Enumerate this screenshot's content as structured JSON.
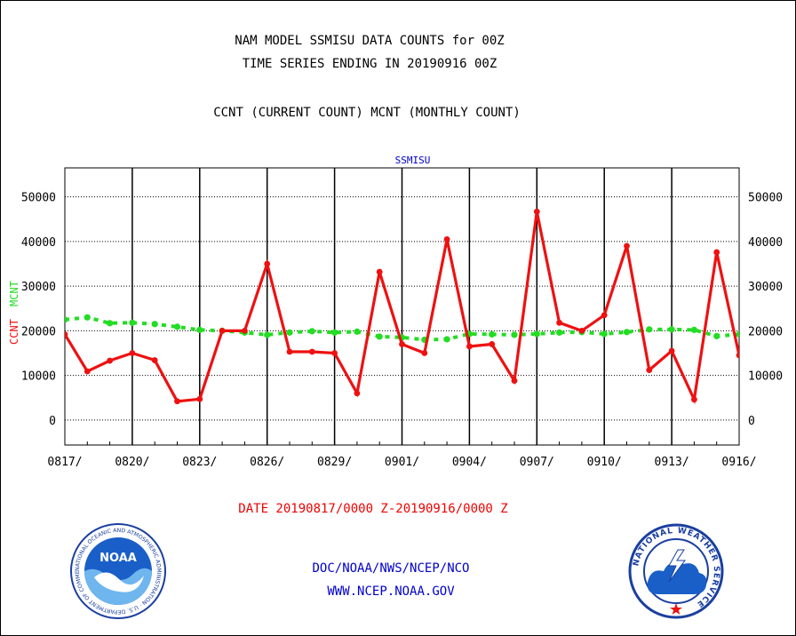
{
  "header": {
    "line1": "NAM MODEL SSMISU DATA COUNTS for 00Z",
    "line2": "TIME SERIES ENDING IN 20190916 00Z",
    "line3": "CCNT (CURRENT COUNT) MCNT (MONTHLY COUNT)"
  },
  "colors": {
    "ccnt": "#ee1111",
    "mcnt": "#22dd22",
    "series_label": "#0000cc",
    "axis": "#000000"
  },
  "chart_data": {
    "type": "line",
    "title": "SSMISU",
    "ylabel_ccnt": "CCNT",
    "ylabel_mcnt": "MCNT",
    "xtick_labels": [
      "0817/",
      "0820/",
      "0823/",
      "0826/",
      "0829/",
      "0901/",
      "0904/",
      "0907/",
      "0910/",
      "0913/",
      "0916/"
    ],
    "ytick_labels": [
      "50000",
      "40000",
      "30000",
      "20000",
      "10000",
      "0"
    ],
    "yticks": [
      50000,
      40000,
      30000,
      20000,
      10000,
      0
    ],
    "ylim": [
      -5600,
      56500
    ],
    "xlim": [
      0,
      30
    ],
    "grid": true,
    "series": [
      {
        "key": "ccnt",
        "x": [
          0,
          1,
          2,
          3,
          4,
          5,
          6,
          7,
          8,
          9,
          10,
          11,
          12,
          13,
          14,
          15,
          16,
          17,
          18,
          19,
          20,
          21,
          22,
          23,
          24,
          25,
          26,
          27,
          28,
          29,
          30
        ],
        "values": [
          19200,
          10900,
          13300,
          15000,
          13400,
          4200,
          4700,
          20000,
          20000,
          35000,
          15300,
          15300,
          15000,
          6000,
          33200,
          17000,
          15000,
          40500,
          16500,
          17000,
          8800,
          46700,
          21800,
          20000,
          23500,
          39000,
          11200,
          15500,
          4600,
          37600,
          14500
        ]
      },
      {
        "key": "mcnt",
        "x": [
          0,
          1,
          2,
          3,
          4,
          5,
          6,
          7,
          8,
          9,
          10,
          11,
          12,
          13,
          14,
          15,
          16,
          17,
          18,
          19,
          20,
          21,
          22,
          23,
          24,
          25,
          26,
          27,
          28,
          29,
          30
        ],
        "values": [
          22500,
          23000,
          21700,
          21800,
          21500,
          20900,
          20200,
          20000,
          19600,
          19100,
          19600,
          19900,
          19600,
          19800,
          18700,
          18500,
          18000,
          18100,
          19300,
          19200,
          19100,
          19300,
          19600,
          19700,
          19300,
          19700,
          20300,
          20300,
          20200,
          18800,
          19200
        ]
      }
    ]
  },
  "footer": {
    "date_range": "DATE 20190817/0000 Z-20190916/0000 Z",
    "line1": "DOC/NOAA/NWS/NCEP/NCO",
    "line2": "WWW.NCEP.NOAA.GOV"
  },
  "logos": {
    "noaa": "NOAA",
    "noaa_ring": "NATIONAL OCEANIC AND ATMOSPHERIC ADMINISTRATION · U.S. DEPARTMENT OF COMMERCE",
    "nws_ring": "NATIONAL WEATHER SERVICE"
  }
}
